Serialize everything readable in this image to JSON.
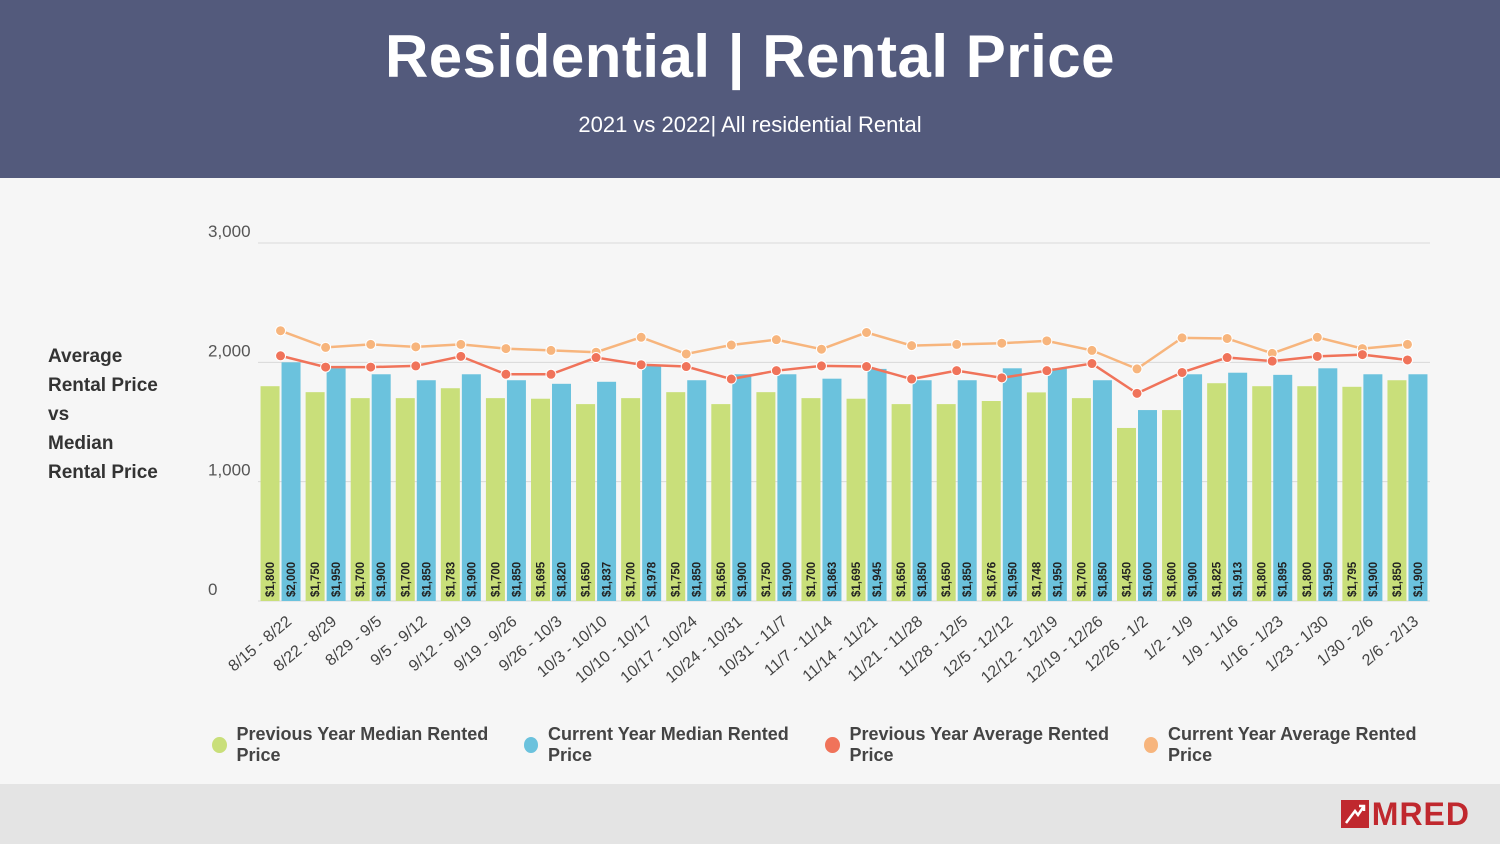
{
  "header": {
    "title": "Residential | Rental Price",
    "subtitle": "2021 vs 2022| All residential Rental"
  },
  "side_label": "Average\nRental Price\nvs\nMedian\nRental Price",
  "footer": {
    "logo_text": "MRED",
    "logo_icon": "mred-logo-icon"
  },
  "colors": {
    "prev_median": "#c9df7a",
    "curr_median": "#6bc2dd",
    "prev_avg": "#f0735a",
    "curr_avg": "#f7b57d",
    "header_bg": "#535a7c",
    "logo": "#c0282e"
  },
  "chart_data": {
    "type": "bar",
    "title": "",
    "ylim": [
      0,
      3000
    ],
    "yticks": [
      0,
      1000,
      2000,
      3000
    ],
    "ytick_labels": [
      "0",
      "1,000",
      "2,000",
      "3,000"
    ],
    "grid": true,
    "legend_position": "bottom",
    "categories": [
      "8/15 - 8/22",
      "8/22 - 8/29",
      "8/29 - 9/5",
      "9/5 - 9/12",
      "9/12 - 9/19",
      "9/19 - 9/26",
      "9/26 - 10/3",
      "10/3 - 10/10",
      "10/10 - 10/17",
      "10/17 - 10/24",
      "10/24 - 10/31",
      "10/31 - 11/7",
      "11/7 - 11/14",
      "11/14 - 11/21",
      "11/21 - 11/28",
      "11/28 - 12/5",
      "12/5 - 12/12",
      "12/12 - 12/19",
      "12/19 - 12/26",
      "12/26 - 1/2",
      "1/2 - 1/9",
      "1/9 - 1/16",
      "1/16 - 1/23",
      "1/23 - 1/30",
      "1/30 - 2/6",
      "2/6 - 2/13"
    ],
    "series": [
      {
        "name": "Previous Year Median Rented Price",
        "type": "bar",
        "values": [
          1800,
          1750,
          1700,
          1700,
          1783,
          1700,
          1695,
          1650,
          1700,
          1750,
          1650,
          1750,
          1700,
          1695,
          1650,
          1650,
          1676,
          1748,
          1700,
          1450,
          1600,
          1825,
          1800,
          1800,
          1795,
          1850
        ],
        "labels": [
          "$1,800",
          "$1,750",
          "$1,700",
          "$1,700",
          "$1,783",
          "$1,700",
          "$1,695",
          "$1,650",
          "$1,700",
          "$1,750",
          "$1,650",
          "$1,750",
          "$1,700",
          "$1,695",
          "$1,650",
          "$1,650",
          "$1,676",
          "$1,748",
          "$1,700",
          "$1,450",
          "$1,600",
          "$1,825",
          "$1,800",
          "$1,800",
          "$1,795",
          "$1,850"
        ]
      },
      {
        "name": "Current Year Median Rented Price",
        "type": "bar",
        "values": [
          2000,
          1950,
          1900,
          1850,
          1900,
          1850,
          1820,
          1837,
          1978,
          1850,
          1900,
          1900,
          1863,
          1945,
          1850,
          1850,
          1950,
          1950,
          1850,
          1600,
          1900,
          1913,
          1895,
          1950,
          1900,
          1900
        ],
        "labels": [
          "$2,000",
          "$1,950",
          "$1,900",
          "$1,850",
          "$1,900",
          "$1,850",
          "$1,820",
          "$1,837",
          "$1,978",
          "$1,850",
          "$1,900",
          "$1,900",
          "$1,863",
          "$1,945",
          "$1,850",
          "$1,850",
          "$1,950",
          "$1,950",
          "$1,850",
          "$1,600",
          "$1,900",
          "$1,913",
          "$1,895",
          "$1,950",
          "$1,900",
          "$1,900"
        ]
      },
      {
        "name": "Previous Year Average Rented Price",
        "type": "line",
        "values": [
          2055,
          1960,
          1960,
          1970,
          2050,
          1900,
          1900,
          2040,
          1980,
          1965,
          1860,
          1930,
          1970,
          1965,
          1860,
          1930,
          1870,
          1930,
          1990,
          1740,
          1915,
          2040,
          2010,
          2050,
          2065,
          2020
        ]
      },
      {
        "name": "Current Year Average Rented Price",
        "type": "line",
        "values": [
          2265,
          2125,
          2150,
          2130,
          2150,
          2115,
          2100,
          2085,
          2210,
          2070,
          2145,
          2190,
          2110,
          2250,
          2140,
          2150,
          2160,
          2180,
          2100,
          1945,
          2205,
          2200,
          2075,
          2210,
          2115,
          2150
        ]
      }
    ]
  }
}
